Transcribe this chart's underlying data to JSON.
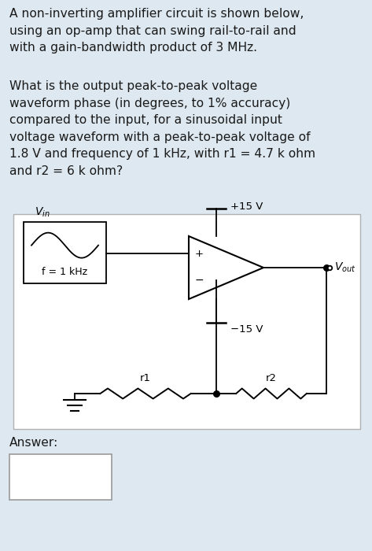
{
  "bg_color": "#dde8f0",
  "circuit_bg": "#ffffff",
  "text_color": "#1a1a1a",
  "title_text": "A non-inverting amplifier circuit is shown below,\nusing an op-amp that can swing rail-to-rail and\nwith a gain-bandwidth product of 3 MHz.",
  "question_text": "What is the output peak-to-peak voltage\nwaveform phase (in degrees, to 1% accuracy)\ncompared to the input, for a sinusoidal input\nvoltage waveform with a peak-to-peak voltage of\n1.8 V and frequency of 1 kHz, with r1 = 4.7 k ohm\nand r2 = 6 k ohm?",
  "answer_label": "Answer:",
  "font_size_main": 11.2
}
